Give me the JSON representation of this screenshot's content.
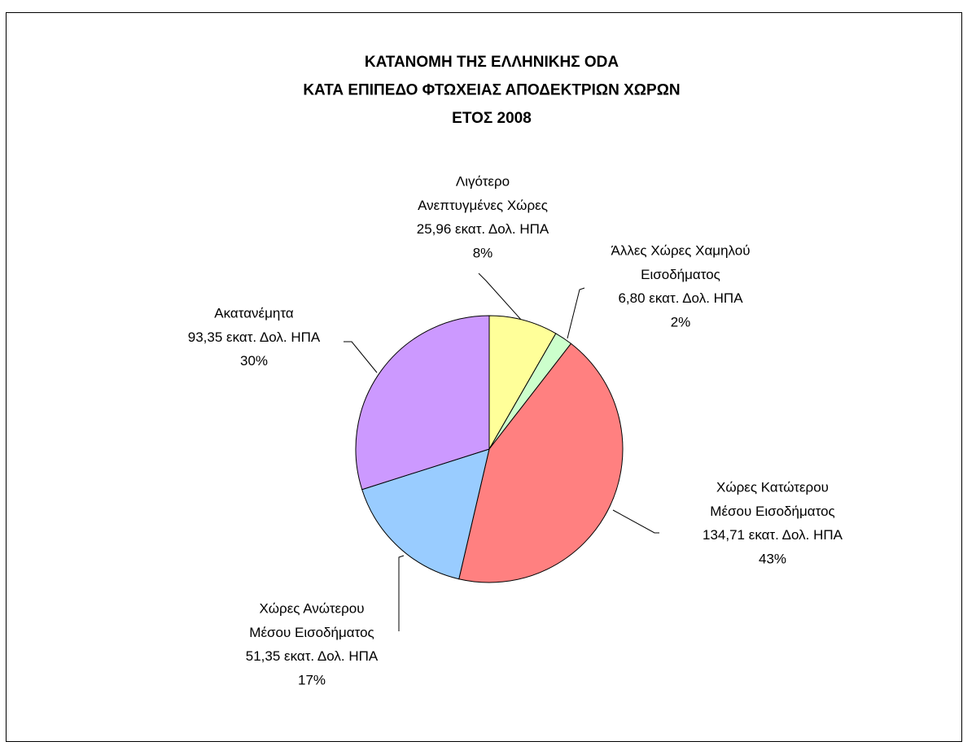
{
  "chart_data": {
    "type": "pie",
    "title": [
      "ΚΑΤΑΝΟΜΗ ΤΗΣ ΕΛΛΗΝΙΚΗΣ ODA",
      "ΚΑΤΑ ΕΠΙΠΕΔΟ ΦΤΩΧΕΙΑΣ ΑΠΟΔΕΚΤΡΙΩΝ ΧΩΡΩΝ",
      "ΕΤΟΣ 2008"
    ],
    "categories": [
      [
        "Λιγότερο",
        "Ανεπτυγμένες Χώρες"
      ],
      [
        "Άλλες Χώρες Χαμηλού",
        "Εισοδήματος"
      ],
      [
        "Χώρες Κατώτερου",
        "Μέσου Εισοδήματος"
      ],
      [
        "Χώρες Ανώτερου",
        "Μέσου Εισοδήματος"
      ],
      [
        "Ακατανέμητα"
      ]
    ],
    "values": [
      25.96,
      6.8,
      134.71,
      51.35,
      93.35
    ],
    "value_labels": [
      "25,96 εκατ. Δολ. ΗΠΑ",
      "6,80 εκατ. Δολ. ΗΠΑ",
      "134,71 εκατ. Δολ. ΗΠΑ",
      "51,35 εκατ. Δολ. ΗΠΑ",
      "93,35 εκατ. Δολ. ΗΠΑ"
    ],
    "percents": [
      8,
      2,
      43,
      17,
      30
    ],
    "percent_labels": [
      "8%",
      "2%",
      "43%",
      "17%",
      "30%"
    ],
    "colors": [
      "#ffff99",
      "#ccffcc",
      "#ff8080",
      "#99ccff",
      "#cc99ff"
    ]
  }
}
